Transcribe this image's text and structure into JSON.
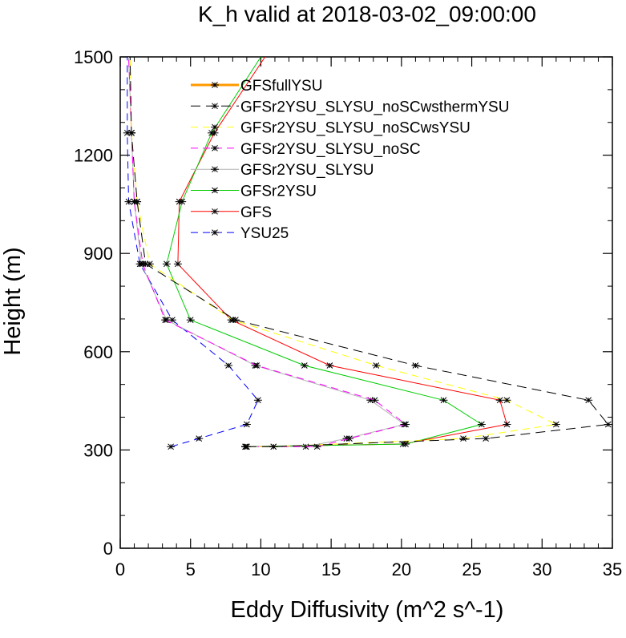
{
  "chart_data": {
    "type": "line",
    "title": "K_h valid at 2018-03-02_09:00:00",
    "xlabel": "Eddy Diffusivity (m^2 s^-1)",
    "ylabel": "Height (m)",
    "xlim": [
      0,
      35
    ],
    "ylim": [
      0,
      1500
    ],
    "xticks": [
      "0",
      "5",
      "10",
      "15",
      "20",
      "25",
      "30",
      "35"
    ],
    "yticks": [
      "0",
      "300",
      "600",
      "900",
      "1200",
      "1500"
    ],
    "legend_position": "top-center",
    "series": [
      {
        "name": "GFSfullYSU",
        "color": "#ff9900",
        "dash": "solid",
        "width": 3,
        "points": []
      },
      {
        "name": "GFSr2YSU_SLYSU_noSCwsthermYSU",
        "color": "#000000",
        "dash": "long-dash",
        "width": 1,
        "points": [
          [
            9,
            310
          ],
          [
            10.9,
            310
          ],
          [
            26,
            335
          ],
          [
            34.7,
            378
          ],
          [
            33.3,
            452
          ],
          [
            21,
            558
          ],
          [
            8.2,
            697
          ],
          [
            1.8,
            868
          ],
          [
            1.2,
            1058
          ],
          [
            0.8,
            1268
          ],
          [
            0.7,
            1500
          ]
        ]
      },
      {
        "name": "GFSr2YSU_SLYSU_noSCwsYSU",
        "color": "#ffff00",
        "dash": "dash",
        "width": 1,
        "points": [
          [
            9,
            310
          ],
          [
            10.9,
            310
          ],
          [
            24.4,
            335
          ],
          [
            31,
            378
          ],
          [
            27.5,
            452
          ],
          [
            18.2,
            558
          ],
          [
            8,
            697
          ],
          [
            2.1,
            868
          ],
          [
            1.2,
            1058
          ],
          [
            0.8,
            1268
          ],
          [
            0.7,
            1500
          ]
        ]
      },
      {
        "name": "GFSr2YSU_SLYSU_noSC",
        "color": "#ff00ff",
        "dash": "dash",
        "width": 1,
        "points": [
          [
            8.9,
            310
          ],
          [
            14,
            310
          ],
          [
            16.3,
            335
          ],
          [
            20.3,
            378
          ],
          [
            18.1,
            452
          ],
          [
            9.7,
            558
          ],
          [
            3.2,
            697
          ],
          [
            1.6,
            868
          ],
          [
            1,
            1058
          ],
          [
            0.8,
            1268
          ],
          [
            0.6,
            1500
          ]
        ]
      },
      {
        "name": "GFSr2YSU_SLYSU",
        "color": "#b3b3b3",
        "dash": "solid",
        "width": 1,
        "points": [
          [
            8.9,
            310
          ],
          [
            13.2,
            310
          ],
          [
            16.1,
            335
          ],
          [
            20.2,
            378
          ],
          [
            17.8,
            452
          ],
          [
            9.6,
            558
          ],
          [
            3.3,
            697
          ],
          [
            1.5,
            868
          ],
          [
            1,
            1058
          ],
          [
            0.8,
            1268
          ],
          [
            0.6,
            1500
          ]
        ]
      },
      {
        "name": "GFSr2YSU",
        "color": "#00cc00",
        "dash": "solid",
        "width": 1,
        "points": [
          [
            8.9,
            310
          ],
          [
            20.3,
            318
          ],
          [
            25.7,
            378
          ],
          [
            23,
            452
          ],
          [
            13.1,
            558
          ],
          [
            5,
            697
          ],
          [
            3.3,
            868
          ],
          [
            4.4,
            1058
          ],
          [
            6.5,
            1268
          ],
          [
            10,
            1500
          ]
        ]
      },
      {
        "name": "GFS",
        "color": "#ff0000",
        "dash": "solid",
        "width": 1,
        "points": [
          [
            8.9,
            310
          ],
          [
            20.1,
            318
          ],
          [
            27.5,
            378
          ],
          [
            27,
            452
          ],
          [
            14.9,
            558
          ],
          [
            7.9,
            697
          ],
          [
            4.1,
            868
          ],
          [
            4.2,
            1058
          ],
          [
            6.7,
            1268
          ],
          [
            10.3,
            1500
          ]
        ]
      },
      {
        "name": "YSU25",
        "color": "#0000ff",
        "dash": "dash",
        "width": 1,
        "points": [
          [
            3.6,
            310
          ],
          [
            5.6,
            335
          ],
          [
            9,
            378
          ],
          [
            9.8,
            452
          ],
          [
            7.7,
            558
          ],
          [
            3.7,
            697
          ],
          [
            1.4,
            868
          ],
          [
            0.6,
            1058
          ],
          [
            0.5,
            1268
          ],
          [
            0.5,
            1500
          ]
        ]
      }
    ]
  }
}
